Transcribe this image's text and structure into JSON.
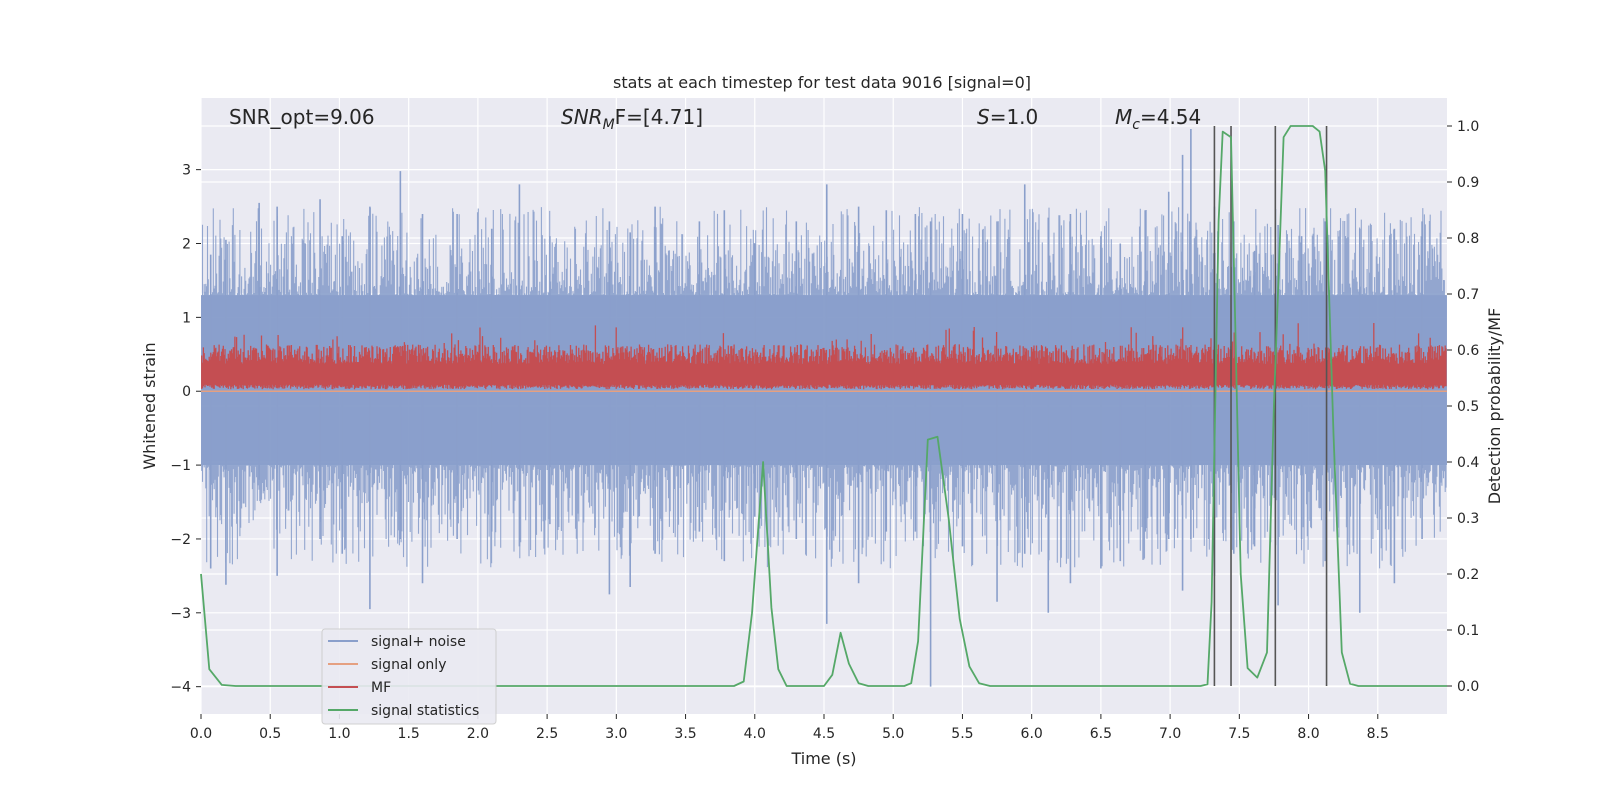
{
  "chart_data": {
    "type": "line",
    "title": "stats at each timestep for test data 9016 [signal=0]",
    "xlabel": "Time (s)",
    "ylabel": "Whitened strain",
    "ylabel_right": "Detection probability/MF",
    "xlim": [
      0.0,
      9.0
    ],
    "ylim": [
      -4.37,
      3.97
    ],
    "ylim_right": [
      -0.05,
      1.05
    ],
    "xticks": [
      "0.0",
      "0.5",
      "1.0",
      "1.5",
      "2.0",
      "2.5",
      "3.0",
      "3.5",
      "4.0",
      "4.5",
      "5.0",
      "5.5",
      "6.0",
      "6.5",
      "7.0",
      "7.5",
      "8.0",
      "8.5"
    ],
    "yticks": [
      "3",
      "2",
      "1",
      "0",
      "−1",
      "−2",
      "−3",
      "−4"
    ],
    "yticks_right": [
      "1.0",
      "0.9",
      "0.8",
      "0.7",
      "0.6",
      "0.5",
      "0.4",
      "0.3",
      "0.2",
      "0.1",
      "0.0"
    ],
    "grid": true,
    "legend_position": "lower-left",
    "annotations": {
      "snr_opt": "SNR_opt=9.06",
      "snr_mf_base": "SNR",
      "snr_mf_sub": "M",
      "snr_mf_rest": "F=[4.71]",
      "s_sym": "S",
      "s_val": "=1.0",
      "mc_sym": "M",
      "mc_sub": "c",
      "mc_val": "=4.54"
    },
    "series": [
      {
        "name": "signal+ noise",
        "color": "#8a9fcb",
        "values_description": "whitened strain noise band, roughly −1.5 to 1.8 with spikes to about ±3"
      },
      {
        "name": "signal only",
        "color": "#e5a081",
        "values": [
          [
            0.0,
            0.0
          ],
          [
            9.0,
            0.0
          ]
        ]
      },
      {
        "name": "MF",
        "color": "#c44e52",
        "values_description": "matched filter output on right axis, roughly 0.53 to 0.63"
      },
      {
        "name": "signal statistics",
        "color": "#55a868",
        "points": [
          [
            0.0,
            0.2
          ],
          [
            0.06,
            0.03
          ],
          [
            0.15,
            0.002
          ],
          [
            0.25,
            0.0
          ],
          [
            3.85,
            0.0
          ],
          [
            3.92,
            0.008
          ],
          [
            3.98,
            0.13
          ],
          [
            4.06,
            0.4
          ],
          [
            4.12,
            0.14
          ],
          [
            4.17,
            0.03
          ],
          [
            4.23,
            0.0
          ],
          [
            4.5,
            0.0
          ],
          [
            4.56,
            0.02
          ],
          [
            4.62,
            0.095
          ],
          [
            4.68,
            0.04
          ],
          [
            4.75,
            0.005
          ],
          [
            4.82,
            0.0
          ],
          [
            5.08,
            0.0
          ],
          [
            5.13,
            0.005
          ],
          [
            5.18,
            0.08
          ],
          [
            5.25,
            0.44
          ],
          [
            5.32,
            0.445
          ],
          [
            5.4,
            0.3
          ],
          [
            5.48,
            0.12
          ],
          [
            5.55,
            0.035
          ],
          [
            5.62,
            0.005
          ],
          [
            5.7,
            0.0
          ],
          [
            7.22,
            0.0
          ],
          [
            7.27,
            0.003
          ],
          [
            7.3,
            0.15
          ],
          [
            7.35,
            0.83
          ],
          [
            7.38,
            0.99
          ],
          [
            7.44,
            0.98
          ],
          [
            7.47,
            0.65
          ],
          [
            7.51,
            0.2
          ],
          [
            7.56,
            0.032
          ],
          [
            7.63,
            0.015
          ],
          [
            7.7,
            0.06
          ],
          [
            7.75,
            0.5
          ],
          [
            7.82,
            0.98
          ],
          [
            7.87,
            1.0
          ],
          [
            8.03,
            1.0
          ],
          [
            8.08,
            0.99
          ],
          [
            8.12,
            0.92
          ],
          [
            8.18,
            0.45
          ],
          [
            8.24,
            0.06
          ],
          [
            8.3,
            0.004
          ],
          [
            8.36,
            0.0
          ],
          [
            9.0,
            0.0
          ]
        ]
      }
    ],
    "vertical_lines": [
      7.32,
      7.44,
      7.76,
      8.13
    ],
    "vertical_line_range_right": [
      0.0,
      1.0
    ],
    "noise_spikes": [
      [
        0.07,
        1.85,
        -2.4
      ],
      [
        0.18,
        2.05,
        -2.62
      ],
      [
        0.42,
        2.55,
        -1.2
      ],
      [
        0.55,
        2.5,
        -2.5
      ],
      [
        0.86,
        2.6,
        -2.0
      ],
      [
        1.02,
        2.1,
        -2.2
      ],
      [
        1.22,
        2.5,
        -2.95
      ],
      [
        1.44,
        2.98,
        -2.0
      ],
      [
        1.6,
        2.4,
        -2.6
      ],
      [
        1.85,
        2.4,
        -2.0
      ],
      [
        2.1,
        2.2,
        -1.9
      ],
      [
        2.3,
        2.8,
        -2.1
      ],
      [
        2.52,
        2.1,
        -1.8
      ],
      [
        2.95,
        2.3,
        -2.75
      ],
      [
        3.1,
        2.15,
        -2.65
      ],
      [
        3.28,
        2.5,
        -2.2
      ],
      [
        3.6,
        2.3,
        -1.9
      ],
      [
        3.78,
        2.45,
        -2.3
      ],
      [
        4.0,
        2.0,
        -1.7
      ],
      [
        4.3,
        2.3,
        -2.0
      ],
      [
        4.52,
        2.8,
        -3.15
      ],
      [
        4.75,
        2.5,
        -2.6
      ],
      [
        4.95,
        2.45,
        -1.9
      ],
      [
        5.16,
        2.4,
        -1.9
      ],
      [
        5.27,
        2.3,
        -4.0
      ],
      [
        5.5,
        2.4,
        -2.1
      ],
      [
        5.75,
        2.3,
        -2.85
      ],
      [
        5.95,
        2.8,
        -2.2
      ],
      [
        6.12,
        2.35,
        -3.0
      ],
      [
        6.28,
        2.4,
        -2.6
      ],
      [
        6.5,
        2.1,
        -2.4
      ],
      [
        6.64,
        2.0,
        -2.3
      ],
      [
        6.82,
        2.45,
        -1.9
      ],
      [
        6.99,
        2.7,
        -2.0
      ],
      [
        7.09,
        3.2,
        -2.7
      ],
      [
        7.15,
        3.55,
        -2.0
      ],
      [
        7.32,
        2.5,
        -2.5
      ],
      [
        7.46,
        2.3,
        -2.2
      ],
      [
        7.61,
        1.9,
        -2.1
      ],
      [
        7.78,
        2.25,
        -2.9
      ],
      [
        7.95,
        2.1,
        -2.0
      ],
      [
        8.12,
        2.3,
        -2.3
      ],
      [
        8.37,
        2.2,
        -3.0
      ],
      [
        8.62,
        2.2,
        -2.6
      ],
      [
        8.82,
        2.3,
        -2.0
      ]
    ]
  }
}
